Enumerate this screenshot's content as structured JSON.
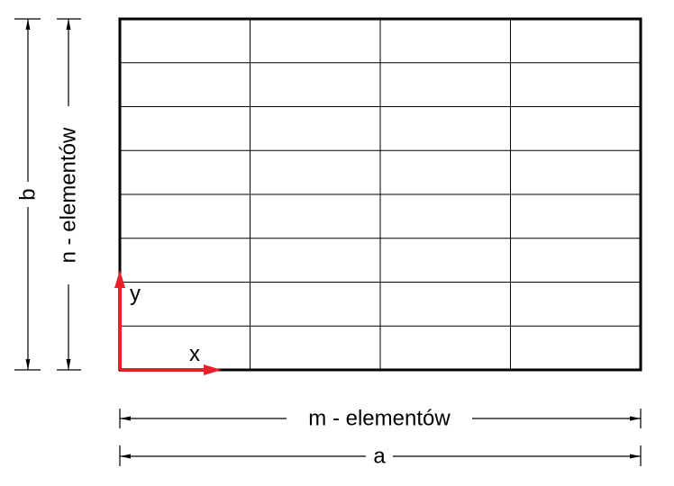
{
  "labels": {
    "height_dimension": "b",
    "height_elements": "n - elementów",
    "width_elements": "m - elementów",
    "width_dimension": "a",
    "axis_x": "x",
    "axis_y": "y"
  },
  "mesh": {
    "columns": 4,
    "rows": 8
  },
  "colors": {
    "line": "#000000",
    "axis": "#e8202a"
  }
}
